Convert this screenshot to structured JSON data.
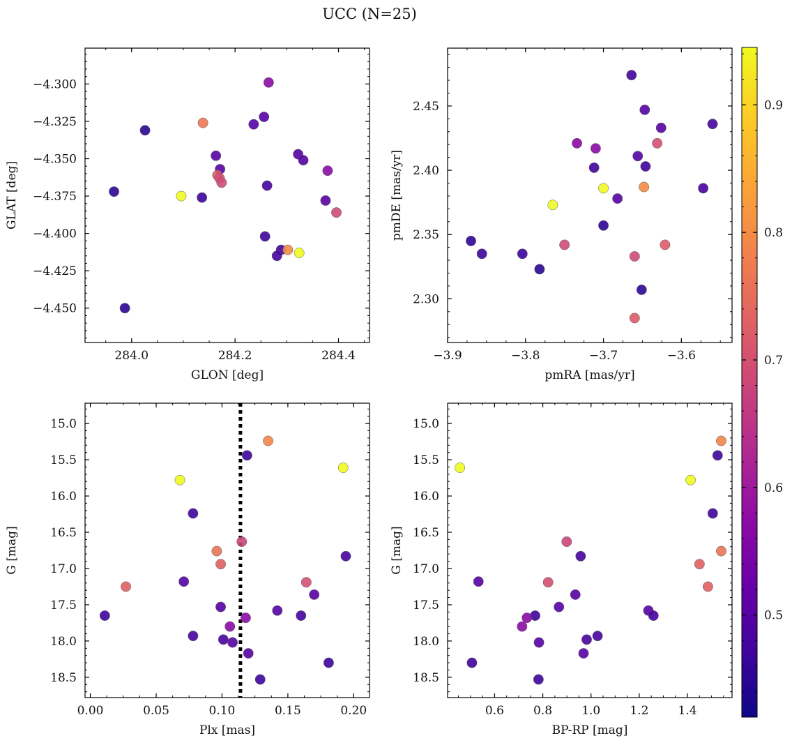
{
  "figure": {
    "suptitle": "UCC (N=25)"
  },
  "colorbar": {
    "min": 0.42,
    "max": 0.945,
    "ticks": [
      0.5,
      0.6,
      0.7,
      0.8,
      0.9
    ],
    "tick_labels": [
      "0.5",
      "0.6",
      "0.7",
      "0.8",
      "0.9"
    ],
    "colormap": "plasma"
  },
  "chart_data": [
    {
      "type": "scatter",
      "title": "",
      "xlabel": "GLON [deg]",
      "ylabel": "GLAT [deg]",
      "xlim": [
        283.91,
        284.46
      ],
      "ylim": [
        -4.473,
        -4.276
      ],
      "xticks": [
        284.0,
        284.2,
        284.4
      ],
      "xtick_labels": [
        "284.0",
        "284.2",
        "284.4"
      ],
      "yticks": [
        -4.3,
        -4.325,
        -4.35,
        -4.375,
        -4.4,
        -4.425,
        -4.45
      ],
      "ytick_labels": [
        "−4.300",
        "−4.325",
        "−4.350",
        "−4.375",
        "−4.400",
        "−4.425",
        "−4.450"
      ],
      "grid": false,
      "points": [
        {
          "x": 284.265,
          "y": -4.299,
          "c": 0.57
        },
        {
          "x": 284.138,
          "y": -4.326,
          "c": 0.77
        },
        {
          "x": 284.026,
          "y": -4.331,
          "c": 0.45
        },
        {
          "x": 284.256,
          "y": -4.322,
          "c": 0.5
        },
        {
          "x": 284.236,
          "y": -4.327,
          "c": 0.5
        },
        {
          "x": 284.322,
          "y": -4.347,
          "c": 0.5
        },
        {
          "x": 284.332,
          "y": -4.351,
          "c": 0.5
        },
        {
          "x": 284.163,
          "y": -4.348,
          "c": 0.5
        },
        {
          "x": 284.171,
          "y": -4.357,
          "c": 0.5
        },
        {
          "x": 284.379,
          "y": -4.358,
          "c": 0.57
        },
        {
          "x": 284.166,
          "y": -4.361,
          "c": 0.72
        },
        {
          "x": 284.17,
          "y": -4.363,
          "c": 0.7
        },
        {
          "x": 284.174,
          "y": -4.366,
          "c": 0.69
        },
        {
          "x": 284.262,
          "y": -4.368,
          "c": 0.48
        },
        {
          "x": 283.966,
          "y": -4.372,
          "c": 0.45
        },
        {
          "x": 284.096,
          "y": -4.375,
          "c": 0.945
        },
        {
          "x": 284.136,
          "y": -4.376,
          "c": 0.47
        },
        {
          "x": 284.375,
          "y": -4.378,
          "c": 0.5
        },
        {
          "x": 284.396,
          "y": -4.386,
          "c": 0.69
        },
        {
          "x": 284.258,
          "y": -4.402,
          "c": 0.47
        },
        {
          "x": 284.289,
          "y": -4.411,
          "c": 0.48
        },
        {
          "x": 284.302,
          "y": -4.411,
          "c": 0.8
        },
        {
          "x": 284.281,
          "y": -4.415,
          "c": 0.48
        },
        {
          "x": 284.324,
          "y": -4.413,
          "c": 0.945
        },
        {
          "x": 283.987,
          "y": -4.45,
          "c": 0.45
        }
      ]
    },
    {
      "type": "scatter",
      "title": "",
      "xlabel": "pmRA [mas/yr]",
      "ylabel": "pmDE [mas/yr]",
      "xlim": [
        -3.9,
        -3.535
      ],
      "ylim": [
        2.266,
        2.495
      ],
      "xticks": [
        -3.9,
        -3.8,
        -3.7,
        -3.6
      ],
      "xtick_labels": [
        "−3.9",
        "−3.8",
        "−3.7",
        "−3.6"
      ],
      "yticks": [
        2.3,
        2.35,
        2.4,
        2.45
      ],
      "ytick_labels": [
        "2.30",
        "2.35",
        "2.40",
        "2.45"
      ],
      "grid": false,
      "points": [
        {
          "x": -3.664,
          "y": 2.474,
          "c": 0.47
        },
        {
          "x": -3.647,
          "y": 2.447,
          "c": 0.5
        },
        {
          "x": -3.56,
          "y": 2.436,
          "c": 0.48
        },
        {
          "x": -3.626,
          "y": 2.433,
          "c": 0.5
        },
        {
          "x": -3.631,
          "y": 2.421,
          "c": 0.7
        },
        {
          "x": -3.734,
          "y": 2.421,
          "c": 0.57
        },
        {
          "x": -3.71,
          "y": 2.417,
          "c": 0.57
        },
        {
          "x": -3.656,
          "y": 2.411,
          "c": 0.5
        },
        {
          "x": -3.646,
          "y": 2.403,
          "c": 0.47
        },
        {
          "x": -3.712,
          "y": 2.402,
          "c": 0.47
        },
        {
          "x": -3.7,
          "y": 2.386,
          "c": 0.945
        },
        {
          "x": -3.648,
          "y": 2.387,
          "c": 0.8
        },
        {
          "x": -3.572,
          "y": 2.386,
          "c": 0.48
        },
        {
          "x": -3.682,
          "y": 2.378,
          "c": 0.5
        },
        {
          "x": -3.765,
          "y": 2.373,
          "c": 0.945
        },
        {
          "x": -3.7,
          "y": 2.357,
          "c": 0.45
        },
        {
          "x": -3.87,
          "y": 2.345,
          "c": 0.45
        },
        {
          "x": -3.75,
          "y": 2.342,
          "c": 0.69
        },
        {
          "x": -3.621,
          "y": 2.342,
          "c": 0.72
        },
        {
          "x": -3.856,
          "y": 2.335,
          "c": 0.47
        },
        {
          "x": -3.804,
          "y": 2.335,
          "c": 0.47
        },
        {
          "x": -3.66,
          "y": 2.333,
          "c": 0.69
        },
        {
          "x": -3.782,
          "y": 2.323,
          "c": 0.45
        },
        {
          "x": -3.651,
          "y": 2.307,
          "c": 0.45
        },
        {
          "x": -3.66,
          "y": 2.285,
          "c": 0.72
        }
      ]
    },
    {
      "type": "scatter",
      "title": "",
      "xlabel": "Plx [mas]",
      "ylabel": "G [mag]",
      "xlim": [
        -0.004,
        0.212
      ],
      "ylim": [
        18.78,
        14.72
      ],
      "xticks": [
        0.0,
        0.05,
        0.1,
        0.15,
        0.2
      ],
      "xtick_labels": [
        "0.00",
        "0.05",
        "0.10",
        "0.15",
        "0.20"
      ],
      "yticks": [
        15.0,
        15.5,
        16.0,
        16.5,
        17.0,
        17.5,
        18.0,
        18.5
      ],
      "ytick_labels": [
        "15.0",
        "15.5",
        "16.0",
        "16.5",
        "17.0",
        "17.5",
        "18.0",
        "18.5"
      ],
      "grid": false,
      "vline": {
        "x": 0.114,
        "style": "dotted",
        "color": "#000000"
      },
      "points": [
        {
          "x": 0.135,
          "y": 15.24,
          "c": 0.79
        },
        {
          "x": 0.119,
          "y": 15.44,
          "c": 0.47
        },
        {
          "x": 0.192,
          "y": 15.61,
          "c": 0.945
        },
        {
          "x": 0.068,
          "y": 15.78,
          "c": 0.945
        },
        {
          "x": 0.078,
          "y": 16.24,
          "c": 0.47
        },
        {
          "x": 0.115,
          "y": 16.63,
          "c": 0.68
        },
        {
          "x": 0.096,
          "y": 16.76,
          "c": 0.76
        },
        {
          "x": 0.194,
          "y": 16.83,
          "c": 0.48
        },
        {
          "x": 0.099,
          "y": 16.94,
          "c": 0.73
        },
        {
          "x": 0.071,
          "y": 17.18,
          "c": 0.5
        },
        {
          "x": 0.164,
          "y": 17.19,
          "c": 0.7
        },
        {
          "x": 0.027,
          "y": 17.25,
          "c": 0.73
        },
        {
          "x": 0.17,
          "y": 17.36,
          "c": 0.5
        },
        {
          "x": 0.099,
          "y": 17.53,
          "c": 0.5
        },
        {
          "x": 0.142,
          "y": 17.58,
          "c": 0.5
        },
        {
          "x": 0.011,
          "y": 17.65,
          "c": 0.47
        },
        {
          "x": 0.16,
          "y": 17.65,
          "c": 0.48
        },
        {
          "x": 0.118,
          "y": 17.68,
          "c": 0.57
        },
        {
          "x": 0.106,
          "y": 17.8,
          "c": 0.57
        },
        {
          "x": 0.078,
          "y": 17.93,
          "c": 0.48
        },
        {
          "x": 0.101,
          "y": 17.98,
          "c": 0.48
        },
        {
          "x": 0.108,
          "y": 18.02,
          "c": 0.5
        },
        {
          "x": 0.12,
          "y": 18.17,
          "c": 0.5
        },
        {
          "x": 0.181,
          "y": 18.3,
          "c": 0.47
        },
        {
          "x": 0.129,
          "y": 18.53,
          "c": 0.47
        }
      ]
    },
    {
      "type": "scatter",
      "title": "",
      "xlabel": "BP-RP [mag]",
      "ylabel": "G [mag]",
      "xlim": [
        0.405,
        1.585
      ],
      "ylim": [
        18.78,
        14.72
      ],
      "xticks": [
        0.6,
        0.8,
        1.0,
        1.2,
        1.4
      ],
      "xtick_labels": [
        "0.6",
        "0.8",
        "1.0",
        "1.2",
        "1.4"
      ],
      "yticks": [
        15.0,
        15.5,
        16.0,
        16.5,
        17.0,
        17.5,
        18.0,
        18.5
      ],
      "ytick_labels": [
        "15.0",
        "15.5",
        "16.0",
        "16.5",
        "17.0",
        "17.5",
        "18.0",
        "18.5"
      ],
      "grid": false,
      "points": [
        {
          "x": 1.54,
          "y": 15.24,
          "c": 0.79
        },
        {
          "x": 1.525,
          "y": 15.44,
          "c": 0.47
        },
        {
          "x": 0.456,
          "y": 15.61,
          "c": 0.945
        },
        {
          "x": 1.413,
          "y": 15.78,
          "c": 0.945
        },
        {
          "x": 1.505,
          "y": 16.24,
          "c": 0.47
        },
        {
          "x": 0.899,
          "y": 16.63,
          "c": 0.68
        },
        {
          "x": 1.54,
          "y": 16.76,
          "c": 0.76
        },
        {
          "x": 0.957,
          "y": 16.83,
          "c": 0.48
        },
        {
          "x": 1.45,
          "y": 16.94,
          "c": 0.73
        },
        {
          "x": 0.533,
          "y": 17.18,
          "c": 0.5
        },
        {
          "x": 0.822,
          "y": 17.19,
          "c": 0.7
        },
        {
          "x": 1.485,
          "y": 17.25,
          "c": 0.73
        },
        {
          "x": 0.935,
          "y": 17.36,
          "c": 0.5
        },
        {
          "x": 0.867,
          "y": 17.53,
          "c": 0.5
        },
        {
          "x": 1.238,
          "y": 17.58,
          "c": 0.5
        },
        {
          "x": 0.768,
          "y": 17.65,
          "c": 0.47
        },
        {
          "x": 1.259,
          "y": 17.65,
          "c": 0.48
        },
        {
          "x": 0.734,
          "y": 17.68,
          "c": 0.57
        },
        {
          "x": 0.714,
          "y": 17.8,
          "c": 0.57
        },
        {
          "x": 1.027,
          "y": 17.93,
          "c": 0.48
        },
        {
          "x": 0.982,
          "y": 17.98,
          "c": 0.48
        },
        {
          "x": 0.784,
          "y": 18.02,
          "c": 0.5
        },
        {
          "x": 0.969,
          "y": 18.17,
          "c": 0.5
        },
        {
          "x": 0.506,
          "y": 18.3,
          "c": 0.47
        },
        {
          "x": 0.782,
          "y": 18.53,
          "c": 0.47
        }
      ]
    }
  ]
}
